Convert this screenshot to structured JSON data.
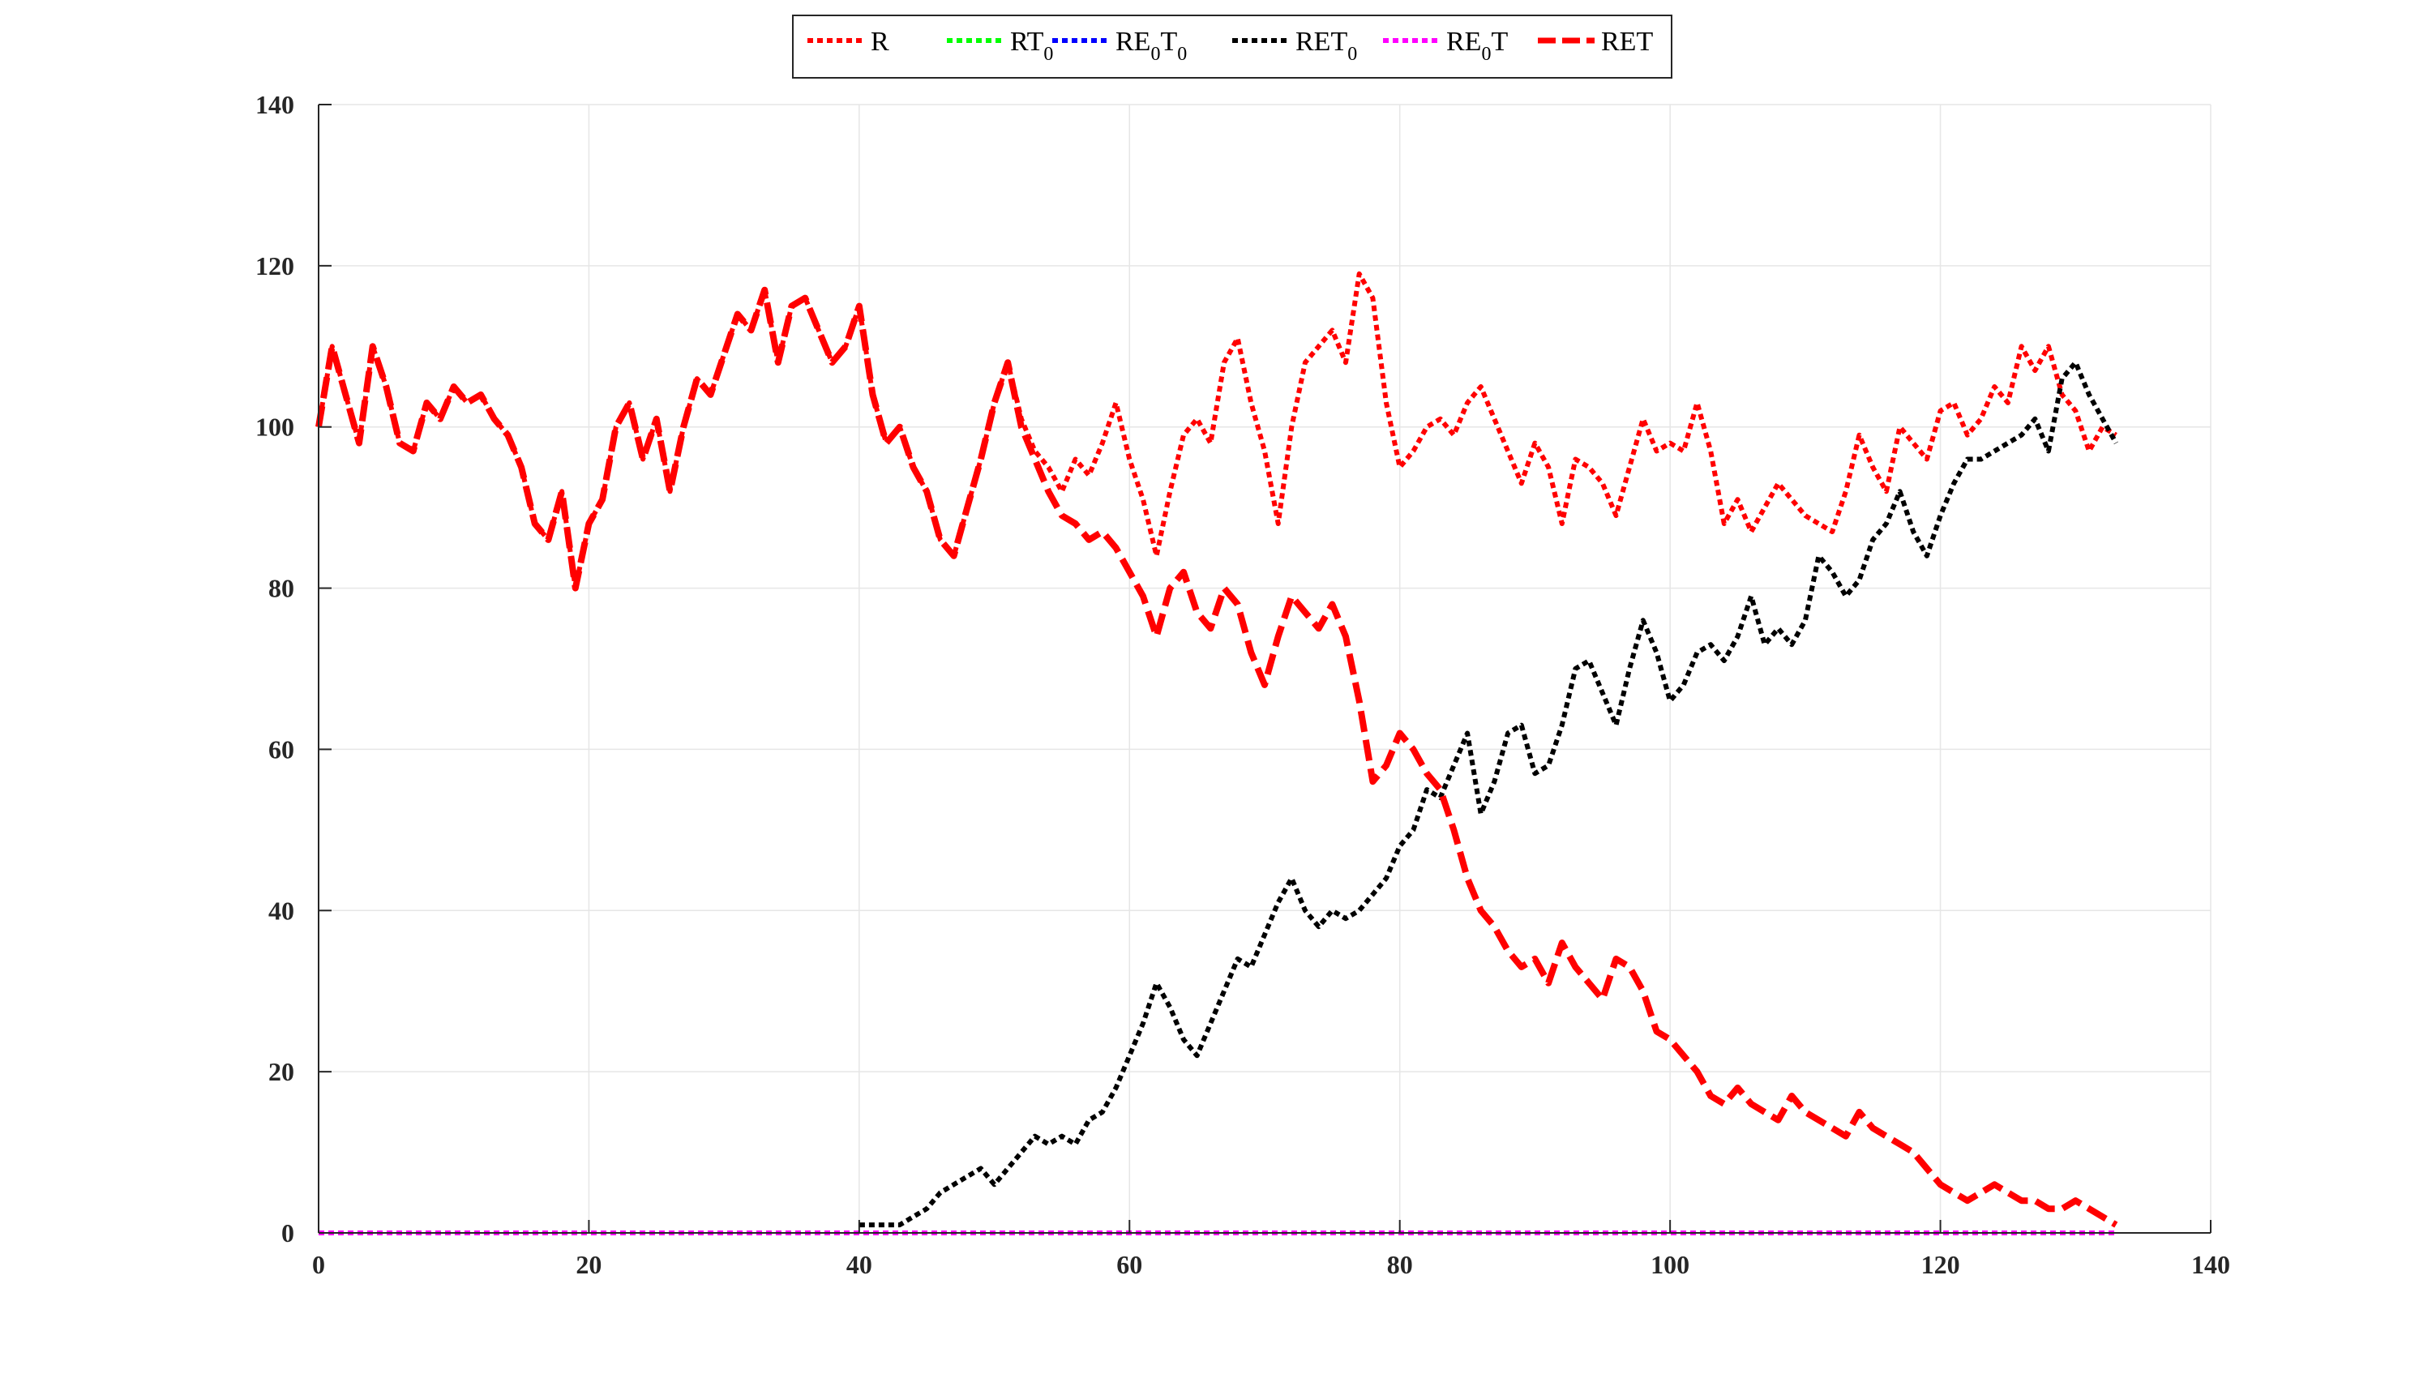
{
  "chart_data": {
    "type": "line",
    "title": "",
    "xlabel": "",
    "ylabel": "",
    "xlim": [
      0,
      140
    ],
    "ylim": [
      0,
      140
    ],
    "xticks": [
      0,
      20,
      40,
      60,
      80,
      100,
      120,
      140
    ],
    "yticks": [
      0,
      20,
      40,
      60,
      80,
      100,
      120,
      140
    ],
    "xtick_labels": [
      "0",
      "20",
      "40",
      "60",
      "80",
      "100",
      "120",
      "140"
    ],
    "ytick_labels": [
      "0",
      "20",
      "40",
      "60",
      "80",
      "100",
      "120",
      "140"
    ],
    "grid": true,
    "legend_position": "top-center",
    "legend": [
      {
        "base": "R",
        "sub": "",
        "tail": "",
        "color": "#ff0000",
        "style": "dotted"
      },
      {
        "base": "RT",
        "sub": "0",
        "tail": "",
        "color": "#00ff00",
        "style": "dotted"
      },
      {
        "base": "RE",
        "sub": "0",
        "tail": "T0",
        "color": "#0000ff",
        "style": "dotted"
      },
      {
        "base": "RET",
        "sub": "0",
        "tail": "",
        "color": "#000000",
        "style": "dotted"
      },
      {
        "base": "RE",
        "sub": "0",
        "tail": "T",
        "color": "#ff00ff",
        "style": "dotted"
      },
      {
        "base": "RET",
        "sub": "",
        "tail": "",
        "color": "#ff0000",
        "style": "dashed"
      }
    ],
    "series": [
      {
        "name": "R",
        "color": "#ff0000",
        "style": "dotted",
        "x": [
          0,
          1,
          2,
          3,
          4,
          5,
          6,
          7,
          8,
          9,
          10,
          11,
          12,
          13,
          14,
          15,
          16,
          17,
          18,
          19,
          20,
          21,
          22,
          23,
          24,
          25,
          26,
          27,
          28,
          29,
          30,
          31,
          32,
          33,
          34,
          35,
          36,
          37,
          38,
          39,
          40,
          41,
          42,
          43,
          44,
          45,
          46,
          47,
          48,
          49,
          50,
          51,
          52,
          53,
          54,
          55,
          56,
          57,
          58,
          59,
          60,
          61,
          62,
          63,
          64,
          65,
          66,
          67,
          68,
          69,
          70,
          71,
          72,
          73,
          74,
          75,
          76,
          77,
          78,
          79,
          80,
          81,
          82,
          83,
          84,
          85,
          86,
          87,
          88,
          89,
          90,
          91,
          92,
          93,
          94,
          95,
          96,
          97,
          98,
          99,
          100,
          101,
          102,
          103,
          104,
          105,
          106,
          107,
          108,
          109,
          110,
          111,
          112,
          113,
          114,
          115,
          116,
          117,
          118,
          119,
          120,
          121,
          122,
          123,
          124,
          125,
          126,
          127,
          128,
          129,
          130,
          131,
          132,
          133
        ],
        "y": [
          100,
          110,
          104,
          98,
          110,
          105,
          98,
          97,
          103,
          101,
          105,
          103,
          104,
          101,
          99,
          95,
          88,
          86,
          92,
          80,
          88,
          91,
          100,
          103,
          96,
          101,
          92,
          100,
          106,
          104,
          109,
          114,
          112,
          117,
          108,
          115,
          116,
          112,
          108,
          110,
          115,
          104,
          98,
          100,
          95,
          92,
          86,
          84,
          90,
          96,
          103,
          108,
          101,
          97,
          95,
          92,
          96,
          94,
          98,
          103,
          96,
          91,
          84,
          92,
          99,
          101,
          98,
          108,
          111,
          103,
          97,
          88,
          100,
          108,
          110,
          112,
          108,
          119,
          116,
          103,
          95,
          97,
          100,
          101,
          99,
          103,
          105,
          101,
          97,
          93,
          98,
          95,
          88,
          96,
          95,
          93,
          89,
          95,
          101,
          97,
          98,
          97,
          103,
          97,
          88,
          91,
          87,
          90,
          93,
          91,
          89,
          88,
          87,
          92,
          99,
          95,
          92,
          100,
          98,
          96,
          102,
          103,
          99,
          101,
          105,
          103,
          110,
          107,
          110,
          104,
          102,
          97,
          100,
          99
        ],
        "marks": []
      },
      {
        "name": "RT0",
        "color": "#00ff00",
        "style": "dotted",
        "x": [
          0,
          133
        ],
        "y": [
          0,
          0
        ],
        "marks": []
      },
      {
        "name": "RE0T0",
        "color": "#0000ff",
        "style": "dotted",
        "x": [
          0,
          133
        ],
        "y": [
          0,
          0
        ],
        "marks": []
      },
      {
        "name": "RET0",
        "color": "#000000",
        "style": "dotted",
        "x": [
          40,
          41,
          42,
          43,
          44,
          45,
          46,
          47,
          48,
          49,
          50,
          51,
          52,
          53,
          54,
          55,
          56,
          57,
          58,
          59,
          60,
          61,
          62,
          63,
          64,
          65,
          66,
          67,
          68,
          69,
          70,
          71,
          72,
          73,
          74,
          75,
          76,
          77,
          78,
          79,
          80,
          81,
          82,
          83,
          84,
          85,
          86,
          87,
          88,
          89,
          90,
          91,
          92,
          93,
          94,
          95,
          96,
          97,
          98,
          99,
          100,
          101,
          102,
          103,
          104,
          105,
          106,
          107,
          108,
          109,
          110,
          111,
          112,
          113,
          114,
          115,
          116,
          117,
          118,
          119,
          120,
          121,
          122,
          123,
          124,
          125,
          126,
          127,
          128,
          129,
          130,
          131,
          132,
          133
        ],
        "y": [
          1,
          1,
          1,
          1,
          2,
          3,
          5,
          6,
          7,
          8,
          6,
          8,
          10,
          12,
          11,
          12,
          11,
          14,
          15,
          18,
          22,
          26,
          31,
          28,
          24,
          22,
          26,
          30,
          34,
          33,
          37,
          41,
          44,
          40,
          38,
          40,
          39,
          40,
          42,
          44,
          48,
          50,
          55,
          54,
          58,
          62,
          52,
          56,
          62,
          63,
          57,
          58,
          63,
          70,
          71,
          67,
          63,
          70,
          76,
          72,
          66,
          68,
          72,
          73,
          71,
          74,
          79,
          73,
          75,
          73,
          76,
          84,
          82,
          79,
          81,
          86,
          88,
          92,
          87,
          84,
          89,
          93,
          96,
          96,
          97,
          98,
          99,
          101,
          97,
          106,
          108,
          104,
          101,
          98
        ],
        "marks": []
      },
      {
        "name": "RE0T",
        "color": "#ff00ff",
        "style": "dotted",
        "x": [
          0,
          133
        ],
        "y": [
          0,
          0
        ],
        "marks": []
      },
      {
        "name": "RET",
        "color": "#ff0000",
        "style": "dashed",
        "x": [
          0,
          1,
          2,
          3,
          4,
          5,
          6,
          7,
          8,
          9,
          10,
          11,
          12,
          13,
          14,
          15,
          16,
          17,
          18,
          19,
          20,
          21,
          22,
          23,
          24,
          25,
          26,
          27,
          28,
          29,
          30,
          31,
          32,
          33,
          34,
          35,
          36,
          37,
          38,
          39,
          40,
          41,
          42,
          43,
          44,
          45,
          46,
          47,
          48,
          49,
          50,
          51,
          52,
          53,
          54,
          55,
          56,
          57,
          58,
          59,
          60,
          61,
          62,
          63,
          64,
          65,
          66,
          67,
          68,
          69,
          70,
          71,
          72,
          73,
          74,
          75,
          76,
          77,
          78,
          79,
          80,
          81,
          82,
          83,
          84,
          85,
          86,
          87,
          88,
          89,
          90,
          91,
          92,
          93,
          94,
          95,
          96,
          97,
          98,
          99,
          100,
          101,
          102,
          103,
          104,
          105,
          106,
          107,
          108,
          109,
          110,
          111,
          112,
          113,
          114,
          115,
          116,
          117,
          118,
          119,
          120,
          121,
          122,
          123,
          124,
          125,
          126,
          127,
          128,
          129,
          130,
          131,
          132,
          133
        ],
        "y": [
          100,
          110,
          104,
          98,
          110,
          105,
          98,
          97,
          103,
          101,
          105,
          103,
          104,
          101,
          99,
          95,
          88,
          86,
          92,
          80,
          88,
          91,
          100,
          103,
          96,
          101,
          92,
          100,
          106,
          104,
          109,
          114,
          112,
          117,
          108,
          115,
          116,
          112,
          108,
          110,
          115,
          104,
          98,
          100,
          95,
          92,
          86,
          84,
          90,
          96,
          103,
          108,
          100,
          96,
          92,
          89,
          88,
          86,
          87,
          85,
          82,
          79,
          74,
          80,
          82,
          77,
          75,
          80,
          78,
          72,
          68,
          74,
          79,
          77,
          75,
          78,
          74,
          66,
          56,
          58,
          62,
          60,
          57,
          55,
          50,
          44,
          40,
          38,
          35,
          33,
          34,
          31,
          36,
          33,
          31,
          29,
          34,
          33,
          30,
          25,
          24,
          22,
          20,
          17,
          16,
          18,
          16,
          15,
          14,
          17,
          15,
          14,
          13,
          12,
          15,
          13,
          12,
          11,
          10,
          8,
          6,
          5,
          4,
          5,
          6,
          5,
          4,
          4,
          3,
          3,
          4,
          3,
          2,
          1
        ],
        "marks": []
      }
    ]
  }
}
